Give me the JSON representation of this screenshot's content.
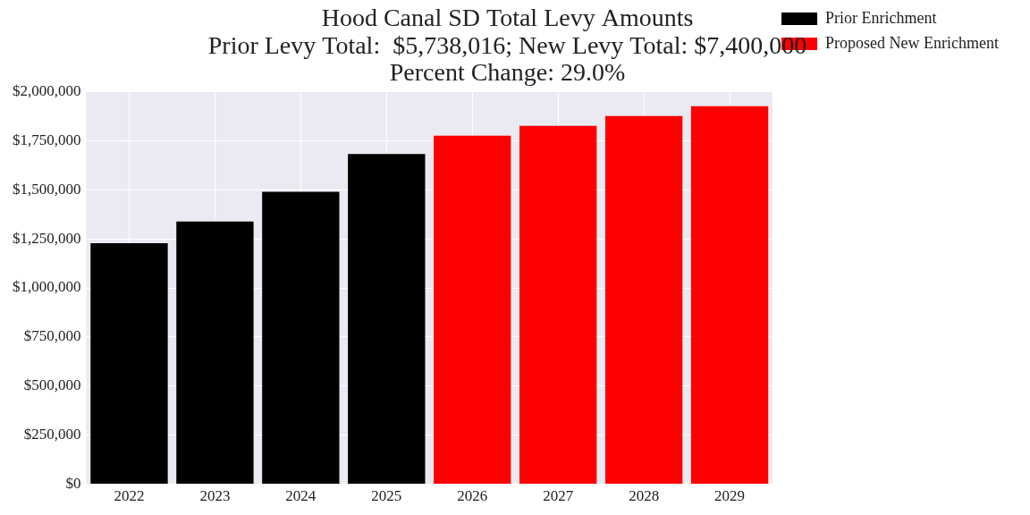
{
  "chart_data": {
    "type": "bar",
    "title": [
      "Hood Canal SD Total Levy Amounts",
      "Prior Levy Total:  $5,738,016; New Levy Total: $7,400,000",
      "Percent Change: 29.0%"
    ],
    "categories": [
      "2022",
      "2023",
      "2024",
      "2025",
      "2026",
      "2027",
      "2028",
      "2029"
    ],
    "series": [
      {
        "name": "Prior Enrichment",
        "color": "#000000",
        "values": [
          1228000,
          1338000,
          1490000,
          1682000,
          null,
          null,
          null,
          null
        ]
      },
      {
        "name": "Proposed New Enrichment",
        "color": "#ff0000",
        "values": [
          null,
          null,
          null,
          null,
          1775000,
          1825000,
          1875000,
          1925000
        ]
      }
    ],
    "ylim": [
      0,
      2000000
    ],
    "yticks": [
      {
        "value": 0,
        "label": "$0"
      },
      {
        "value": 250000,
        "label": "$250,000"
      },
      {
        "value": 500000,
        "label": "$500,000"
      },
      {
        "value": 750000,
        "label": "$750,000"
      },
      {
        "value": 1000000,
        "label": "$1,000,000"
      },
      {
        "value": 1250000,
        "label": "$1,250,000"
      },
      {
        "value": 1500000,
        "label": "$1,500,000"
      },
      {
        "value": 1750000,
        "label": "$1,750,000"
      },
      {
        "value": 2000000,
        "label": "$2,000,000"
      }
    ],
    "grid": true,
    "legend": "right"
  }
}
